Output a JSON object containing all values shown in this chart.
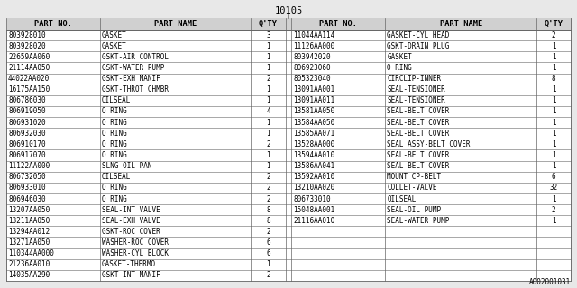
{
  "title": "10105",
  "watermark": "A002001031",
  "headers": [
    "PART NO.",
    "PART NAME",
    "Q'TY",
    "PART NO.",
    "PART NAME",
    "Q'TY"
  ],
  "left_rows": [
    [
      "803928010",
      "GASKET",
      "3"
    ],
    [
      "803928020",
      "GASKET",
      "1"
    ],
    [
      "22659AA060",
      "GSKT-AIR CONTROL",
      "1"
    ],
    [
      "21114AA050",
      "GSKT-WATER PUMP",
      "1"
    ],
    [
      "44022AA020",
      "GSKT-EXH MANIF",
      "2"
    ],
    [
      "16175AA150",
      "GSKT-THROT CHMBR",
      "1"
    ],
    [
      "806786030",
      "OILSEAL",
      "1"
    ],
    [
      "806919050",
      "O RING",
      "4"
    ],
    [
      "806931020",
      "O RING",
      "1"
    ],
    [
      "806932030",
      "O RING",
      "1"
    ],
    [
      "806910170",
      "O RING",
      "2"
    ],
    [
      "806917070",
      "O RING",
      "1"
    ],
    [
      "11122AA000",
      "SLNG-OIL PAN",
      "1"
    ],
    [
      "806732050",
      "OILSEAL",
      "2"
    ],
    [
      "806933010",
      "O RING",
      "2"
    ],
    [
      "806946030",
      "O RING",
      "2"
    ],
    [
      "13207AA050",
      "SEAL-INT VALVE",
      "8"
    ],
    [
      "13211AA050",
      "SEAL-EXH VALVE",
      "8"
    ],
    [
      "13294AA012",
      "GSKT-ROC COVER",
      "2"
    ],
    [
      "13271AA050",
      "WASHER-ROC COVER",
      "6"
    ],
    [
      "110344AA000",
      "WASHER-CYL BLOCK",
      "6"
    ],
    [
      "21236AA010",
      "GASKET-THERMO",
      "1"
    ],
    [
      "14035AA290",
      "GSKT-INT MANIF",
      "2"
    ]
  ],
  "right_rows": [
    [
      "11044AA114",
      "GASKET-CYL HEAD",
      "2"
    ],
    [
      "11126AA000",
      "GSKT-DRAIN PLUG",
      "1"
    ],
    [
      "803942020",
      "GASKET",
      "1"
    ],
    [
      "806923060",
      "O RING",
      "1"
    ],
    [
      "805323040",
      "CIRCLIP-INNER",
      "8"
    ],
    [
      "13091AA001",
      "SEAL-TENSIONER",
      "1"
    ],
    [
      "13091AA011",
      "SEAL-TENSIONER",
      "1"
    ],
    [
      "13581AA050",
      "SEAL-BELT COVER",
      "1"
    ],
    [
      "13584AA050",
      "SEAL-BELT COVER",
      "1"
    ],
    [
      "13585AA071",
      "SEAL-BELT COVER",
      "1"
    ],
    [
      "13528AA000",
      "SEAL ASSY-BELT COVER",
      "1"
    ],
    [
      "13594AA010",
      "SEAL-BELT COVER",
      "1"
    ],
    [
      "13586AA041",
      "SEAL-BELT COVER",
      "1"
    ],
    [
      "13592AA010",
      "MOUNT CP-BELT",
      "6"
    ],
    [
      "13210AA020",
      "COLLET-VALVE",
      "32"
    ],
    [
      "806733010",
      "OILSEAL",
      "1"
    ],
    [
      "15048AA001",
      "SEAL-OIL PUMP",
      "2"
    ],
    [
      "21116AA010",
      "SEAL-WATER PUMP",
      "1"
    ],
    [
      "",
      "",
      ""
    ],
    [
      "",
      "",
      ""
    ],
    [
      "",
      "",
      ""
    ],
    [
      "",
      "",
      ""
    ],
    [
      "",
      "",
      ""
    ]
  ],
  "bg_color": "#e8e8e8",
  "table_bg": "#ffffff",
  "header_bg": "#d0d0d0",
  "line_color": "#666666",
  "text_color": "#000000",
  "font_size": 5.5,
  "header_font_size": 6.2,
  "title_font_size": 7.5,
  "watermark_font_size": 5.5
}
